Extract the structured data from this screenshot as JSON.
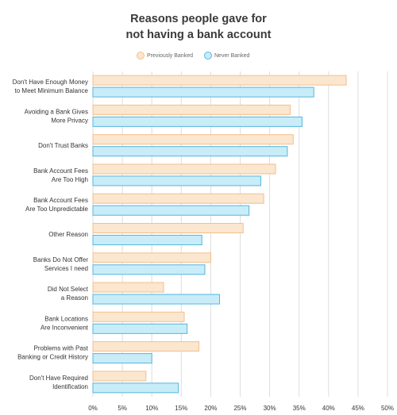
{
  "colors": {
    "previously_fill": "#fbe6cf",
    "previously_stroke": "#f2c08c",
    "never_fill": "#c9ecf9",
    "never_stroke": "#54b7dd",
    "grid": "#dddddd",
    "text": "#333333"
  },
  "chart_data": {
    "type": "bar",
    "orientation": "horizontal",
    "title": "Reasons people gave for not having a bank account",
    "title_lines": [
      "Reasons people gave for",
      "not having a bank account"
    ],
    "xlabel": "",
    "ylabel": "",
    "xlim": [
      0,
      50
    ],
    "x_ticks": [
      "0%",
      "5%",
      "10%",
      "15%",
      "20%",
      "25%",
      "30%",
      "35%",
      "40%",
      "45%",
      "50%"
    ],
    "grid": true,
    "legend": "top-center",
    "categories": [
      [
        "Don't Have Enough Money",
        "to Meet Minimum Balance"
      ],
      [
        "Avoiding a Bank Gives",
        "More Privacy"
      ],
      [
        "Don't Trust Banks"
      ],
      [
        "Bank Account Fees",
        "Are Too High"
      ],
      [
        "Bank Account Fees",
        "Are Too Unpredictable"
      ],
      [
        "Other Reason"
      ],
      [
        "Banks Do Not Offer",
        "Services I need"
      ],
      [
        "Did Not Select",
        "a Reason"
      ],
      [
        "Bank Locations",
        "Are Inconvenient"
      ],
      [
        "Problems with Past",
        "Banking or Credit History"
      ],
      [
        "Don't Have Required",
        "Identification"
      ]
    ],
    "series": [
      {
        "name": "Previously Banked",
        "values": [
          43,
          33.5,
          34,
          31,
          29,
          25.5,
          20,
          12,
          15.5,
          18,
          9
        ]
      },
      {
        "name": "Never Banked",
        "values": [
          37.5,
          35.5,
          33,
          28.5,
          26.5,
          18.5,
          19,
          21.5,
          16,
          10,
          14.5
        ]
      }
    ]
  }
}
